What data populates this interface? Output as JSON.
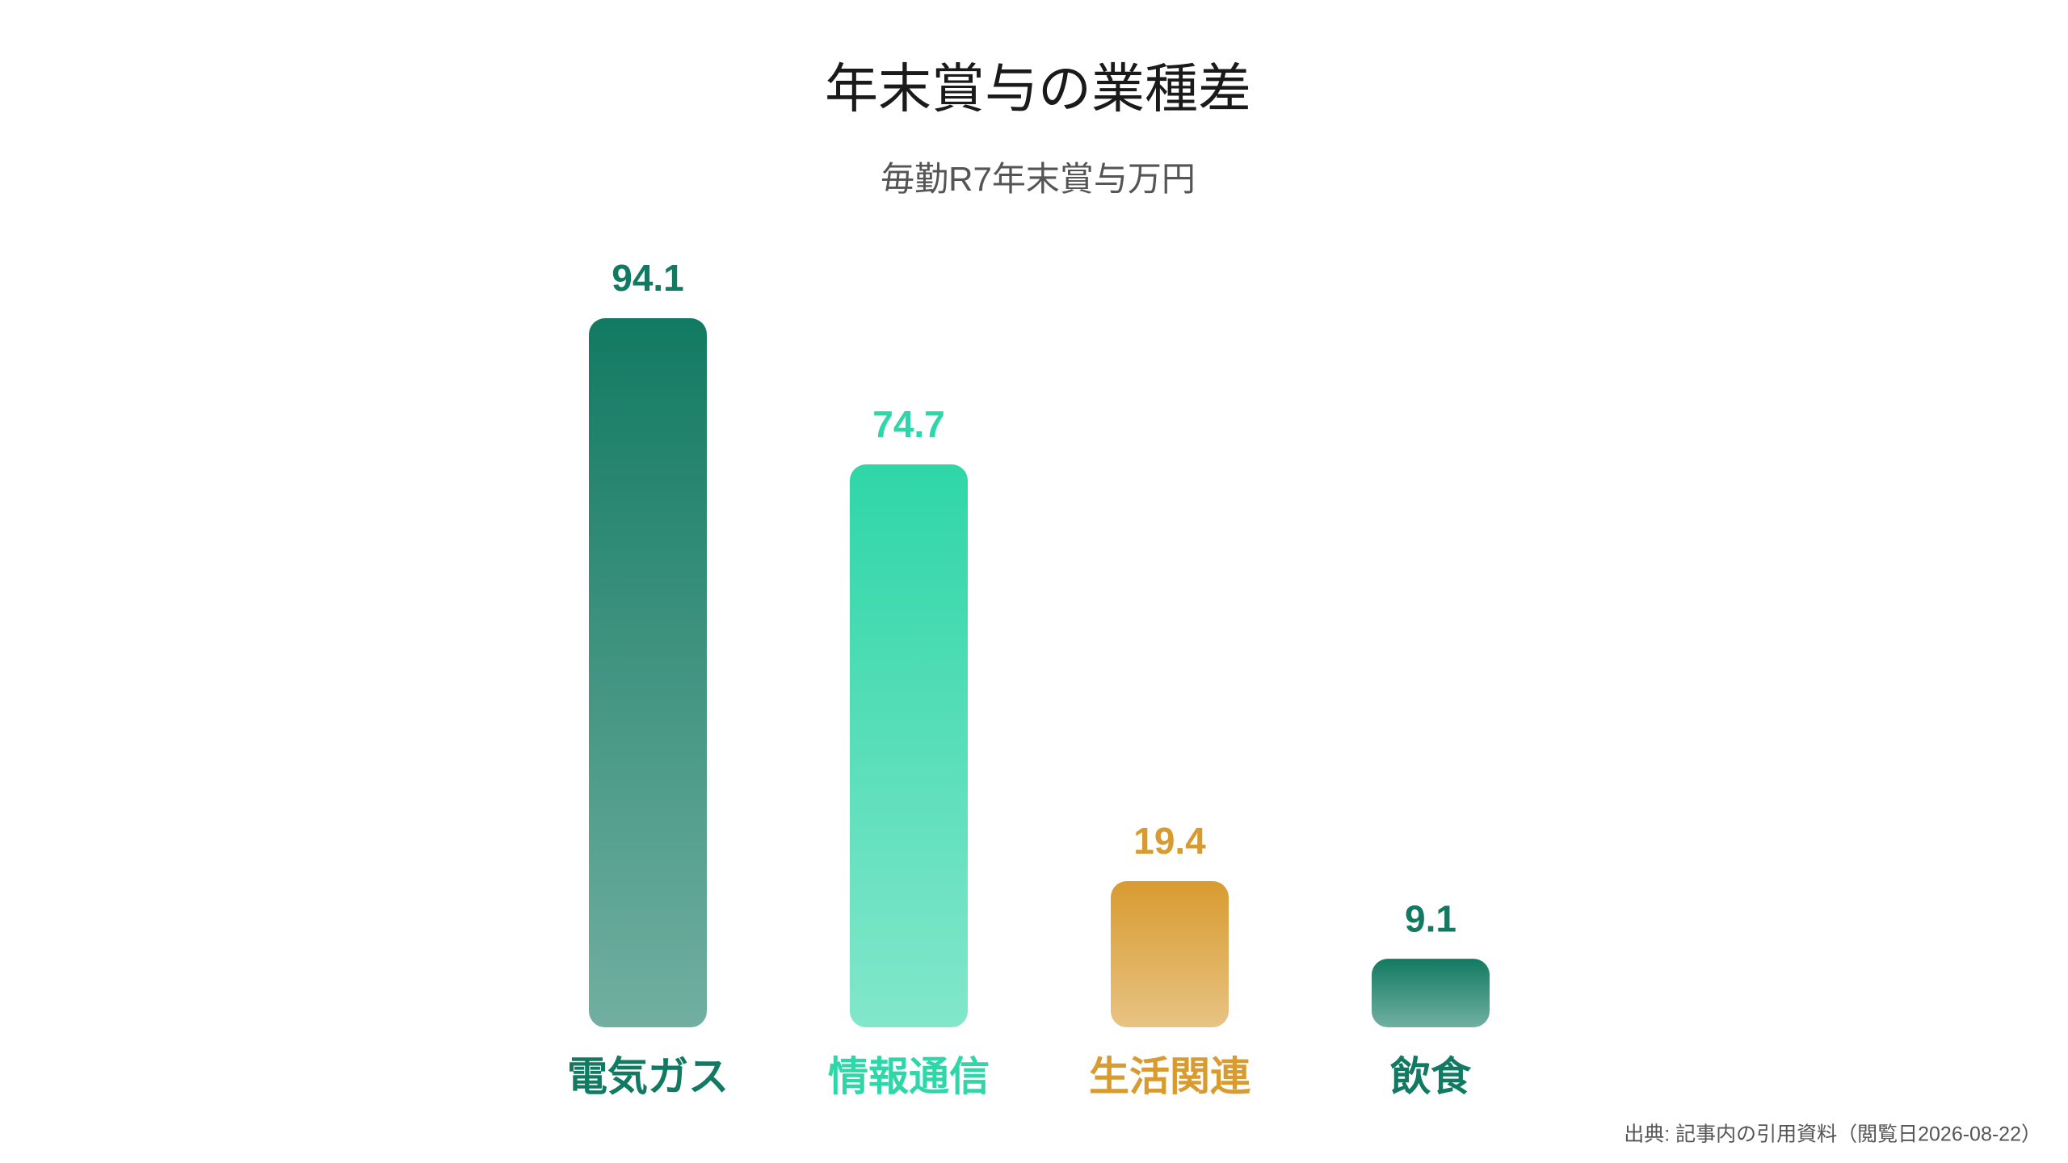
{
  "chart_data": {
    "type": "bar",
    "title": "年末賞与の業種差",
    "subtitle": "毎勤R7年末賞与万円",
    "source": "出典: 記事内の引用資料（閲覧日2026-08-22）",
    "categories": [
      "電気ガス",
      "情報通信",
      "生活関連",
      "飲食"
    ],
    "values": [
      94.1,
      74.7,
      19.4,
      9.1
    ],
    "colors": [
      "#127a62",
      "#2fd6a8",
      "#d89b30",
      "#127a62"
    ],
    "ylim": [
      0,
      100
    ],
    "grid": false
  }
}
